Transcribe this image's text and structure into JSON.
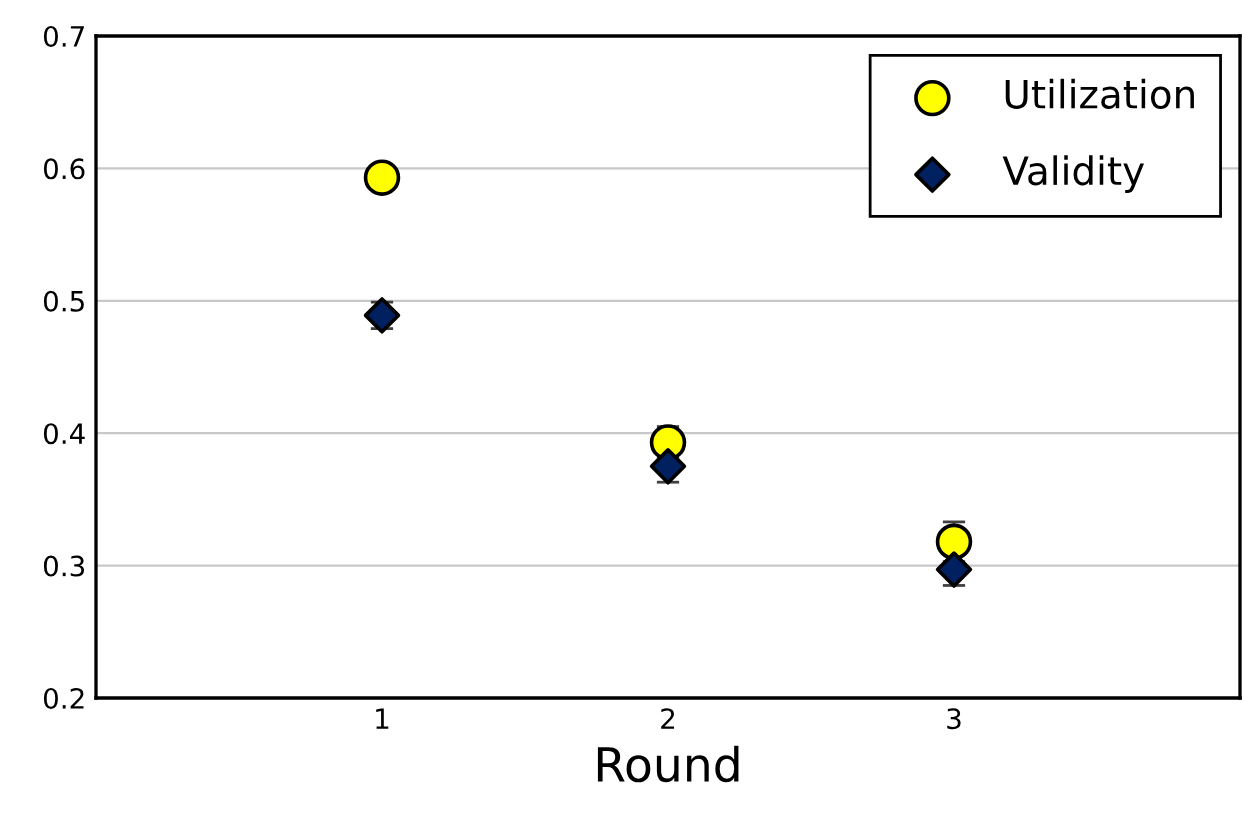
{
  "chart_data": {
    "type": "scatter",
    "xlabel": "Round",
    "x": [
      1,
      2,
      3
    ],
    "xlim": [
      0,
      4
    ],
    "xticks": [
      1,
      2,
      3
    ],
    "ylim": [
      0.2,
      0.7
    ],
    "yticks": [
      0.2,
      0.3,
      0.4,
      0.5,
      0.6,
      0.7
    ],
    "grid": "y",
    "legend": "top right",
    "series": [
      {
        "name": "Utilization",
        "color": "#ffff00",
        "marker": "circle",
        "values": [
          0.593,
          0.393,
          0.318
        ],
        "errors": [
          0.008,
          0.012,
          0.015
        ]
      },
      {
        "name": "Validity",
        "color": "#002060",
        "marker": "diamond",
        "values": [
          0.489,
          0.375,
          0.297
        ],
        "errors": [
          0.01,
          0.012,
          0.012
        ]
      }
    ]
  }
}
